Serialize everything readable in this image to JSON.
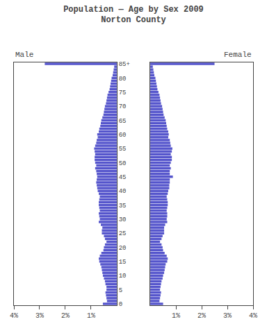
{
  "chart_data": {
    "type": "bar",
    "orientation": "horizontal",
    "title": "Population — Age by Sex 2009",
    "subtitle": "Norton County",
    "categories": [
      "85+",
      null,
      null,
      null,
      null,
      "80",
      null,
      null,
      null,
      null,
      "75",
      null,
      null,
      null,
      null,
      "70",
      null,
      null,
      null,
      null,
      "65",
      null,
      null,
      null,
      null,
      "60",
      null,
      null,
      null,
      null,
      "55",
      null,
      null,
      null,
      null,
      "50",
      null,
      null,
      null,
      null,
      "45",
      null,
      null,
      null,
      null,
      "40",
      null,
      null,
      null,
      null,
      "35",
      null,
      null,
      null,
      null,
      "30",
      null,
      null,
      null,
      null,
      "25",
      null,
      null,
      null,
      null,
      "20",
      null,
      null,
      null,
      null,
      "15",
      null,
      null,
      null,
      null,
      "10",
      null,
      null,
      null,
      null,
      "5",
      null,
      null,
      null,
      null,
      "0"
    ],
    "series": [
      {
        "name": "Male",
        "color": "#5555cc",
        "values": [
          2.8,
          0.1,
          0.12,
          0.14,
          0.16,
          0.2,
          0.22,
          0.24,
          0.26,
          0.28,
          0.32,
          0.36,
          0.38,
          0.4,
          0.42,
          0.46,
          0.48,
          0.5,
          0.52,
          0.56,
          0.6,
          0.62,
          0.64,
          0.68,
          0.7,
          0.76,
          0.74,
          0.78,
          0.8,
          0.84,
          0.88,
          0.86,
          0.84,
          0.86,
          0.86,
          0.84,
          0.8,
          0.84,
          0.8,
          0.78,
          0.76,
          0.78,
          0.8,
          0.78,
          0.76,
          0.74,
          0.7,
          0.66,
          0.68,
          0.7,
          0.7,
          0.68,
          0.66,
          0.7,
          0.68,
          0.66,
          0.7,
          0.62,
          0.56,
          0.58,
          0.58,
          0.5,
          0.46,
          0.4,
          0.46,
          0.5,
          0.52,
          0.6,
          0.66,
          0.7,
          0.68,
          0.64,
          0.6,
          0.58,
          0.56,
          0.54,
          0.5,
          0.46,
          0.44,
          0.4,
          0.4,
          0.44,
          0.42,
          0.4,
          0.38,
          0.54
        ]
      },
      {
        "name": "Female",
        "color": "#5555cc",
        "values": [
          2.5,
          0.1,
          0.12,
          0.14,
          0.16,
          0.2,
          0.22,
          0.24,
          0.26,
          0.28,
          0.32,
          0.36,
          0.38,
          0.4,
          0.42,
          0.46,
          0.48,
          0.5,
          0.52,
          0.56,
          0.6,
          0.62,
          0.64,
          0.66,
          0.7,
          0.72,
          0.7,
          0.76,
          0.78,
          0.8,
          0.86,
          0.84,
          0.8,
          0.84,
          0.84,
          0.8,
          0.76,
          0.8,
          0.76,
          0.76,
          0.88,
          0.76,
          0.76,
          0.74,
          0.74,
          0.7,
          0.68,
          0.64,
          0.66,
          0.68,
          0.68,
          0.66,
          0.64,
          0.66,
          0.66,
          0.64,
          0.66,
          0.58,
          0.54,
          0.54,
          0.54,
          0.48,
          0.44,
          0.38,
          0.44,
          0.48,
          0.5,
          0.56,
          0.64,
          0.68,
          0.66,
          0.6,
          0.58,
          0.56,
          0.54,
          0.5,
          0.48,
          0.44,
          0.42,
          0.4,
          0.38,
          0.42,
          0.4,
          0.38,
          0.36,
          0.5
        ]
      }
    ],
    "xlim": [
      0,
      4
    ],
    "xticks": [
      {
        "value": 1,
        "label": "1%"
      },
      {
        "value": 2,
        "label": "2%"
      },
      {
        "value": 3,
        "label": "3%"
      },
      {
        "value": 4,
        "label": "4%"
      }
    ],
    "grid": false
  }
}
